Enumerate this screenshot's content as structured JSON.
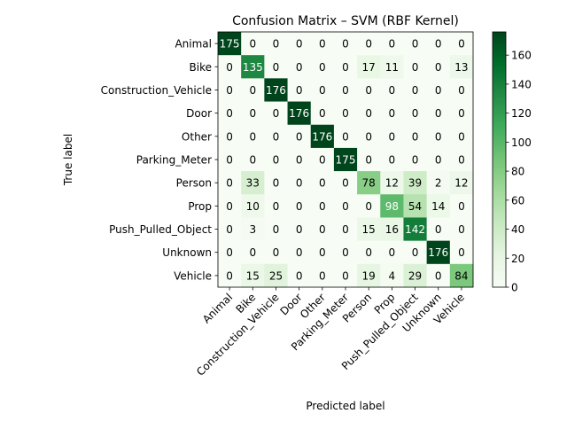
{
  "chart_data": {
    "type": "heatmap",
    "title": "Confusion Matrix – SVM (RBF Kernel)",
    "xlabel": "Predicted label",
    "ylabel": "True label",
    "row_labels": [
      "Animal",
      "Bike",
      "Construction_Vehicle",
      "Door",
      "Other",
      "Parking_Meter",
      "Person",
      "Prop",
      "Push_Pulled_Object",
      "Unknown",
      "Vehicle"
    ],
    "col_labels": [
      "Animal",
      "Bike",
      "Construction_Vehicle",
      "Door",
      "Other",
      "Parking_Meter",
      "Person",
      "Prop",
      "Push_Pulled_Object",
      "Unknown",
      "Vehicle"
    ],
    "matrix": [
      [
        175,
        0,
        0,
        0,
        0,
        0,
        0,
        0,
        0,
        0,
        0
      ],
      [
        0,
        135,
        0,
        0,
        0,
        0,
        17,
        11,
        0,
        0,
        13
      ],
      [
        0,
        0,
        176,
        0,
        0,
        0,
        0,
        0,
        0,
        0,
        0
      ],
      [
        0,
        0,
        0,
        176,
        0,
        0,
        0,
        0,
        0,
        0,
        0
      ],
      [
        0,
        0,
        0,
        0,
        176,
        0,
        0,
        0,
        0,
        0,
        0
      ],
      [
        0,
        0,
        0,
        0,
        0,
        175,
        0,
        0,
        0,
        0,
        0
      ],
      [
        0,
        33,
        0,
        0,
        0,
        0,
        78,
        12,
        39,
        2,
        12
      ],
      [
        0,
        10,
        0,
        0,
        0,
        0,
        0,
        98,
        54,
        14,
        0
      ],
      [
        0,
        3,
        0,
        0,
        0,
        0,
        15,
        16,
        142,
        0,
        0
      ],
      [
        0,
        0,
        0,
        0,
        0,
        0,
        0,
        0,
        0,
        176,
        0
      ],
      [
        0,
        15,
        25,
        0,
        0,
        0,
        19,
        4,
        29,
        0,
        84
      ]
    ],
    "colormap": "Greens",
    "vmin": 0,
    "vmax": 176,
    "colorbar_ticks": [
      0,
      20,
      40,
      60,
      80,
      100,
      120,
      140,
      160
    ],
    "text_color_light": "#ffffff",
    "text_color_dark": "#000000"
  }
}
